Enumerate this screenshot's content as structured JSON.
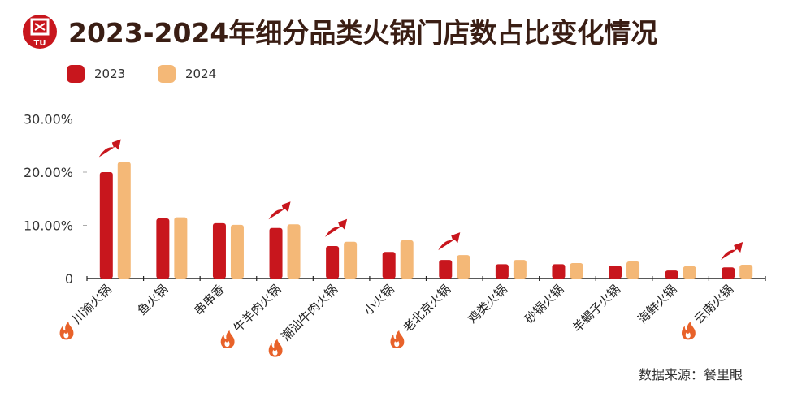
{
  "header": {
    "title": "2023-2024年细分品类火锅门店数占比变化情况",
    "logo_text": "TU"
  },
  "source": "数据来源：餐里眼",
  "colors": {
    "2023": "#c8161d",
    "2024": "#f4b877",
    "title": "#3a1e14",
    "arrow": "#c8161d",
    "fire": "#e8622a"
  },
  "chart_data": {
    "type": "bar",
    "title": "2023-2024年细分品类火锅门店数占比变化情况",
    "categories": [
      "川渝火锅",
      "鱼火锅",
      "串串香",
      "牛羊肉火锅",
      "潮汕牛肉火锅",
      "小火锅",
      "老北京火锅",
      "鸡类火锅",
      "砂锅火锅",
      "羊蝎子火锅",
      "海鲜火锅",
      "云南火锅"
    ],
    "series": [
      {
        "name": "2023",
        "values": [
          20.0,
          11.3,
          10.4,
          9.5,
          6.1,
          5.0,
          3.5,
          2.7,
          2.7,
          2.4,
          1.5,
          2.1
        ]
      },
      {
        "name": "2024",
        "values": [
          21.9,
          11.5,
          10.1,
          10.2,
          6.9,
          7.2,
          4.4,
          3.5,
          2.9,
          3.2,
          2.3,
          2.6
        ]
      }
    ],
    "highlighted_categories": [
      "川渝火锅",
      "牛羊肉火锅",
      "潮汕牛肉火锅",
      "老北京火锅",
      "云南火锅"
    ],
    "yticks": [
      "0",
      "10.00%",
      "20.00%",
      "30.00%"
    ],
    "ylim": [
      0,
      30
    ],
    "unit": "%",
    "legend_position": "top-left",
    "grid": false
  }
}
